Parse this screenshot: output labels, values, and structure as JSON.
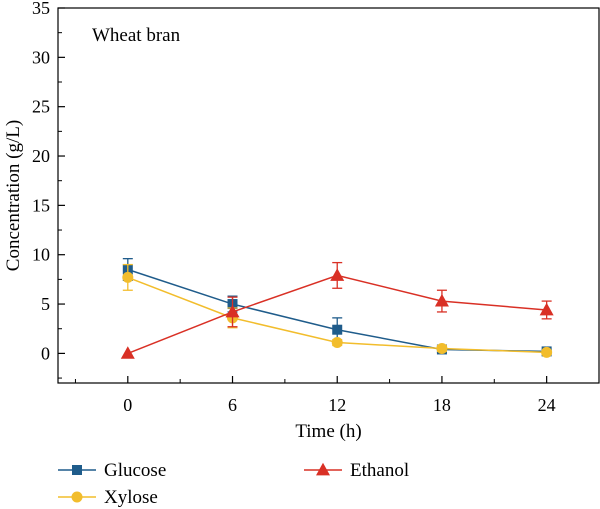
{
  "chart_data": {
    "type": "line",
    "title": "Wheat bran",
    "xlabel": "Time (h)",
    "ylabel": "Concentration (g/L)",
    "xlim": [
      -4,
      27
    ],
    "ylim": [
      -3,
      35
    ],
    "x_ticks": [
      0,
      6,
      12,
      18,
      24
    ],
    "y_ticks": [
      0,
      5,
      10,
      15,
      20,
      25,
      30,
      35
    ],
    "x_tick_labels": [
      "0",
      "6",
      "12",
      "18",
      "24"
    ],
    "y_tick_labels": [
      "0",
      "5",
      "10",
      "15",
      "20",
      "25",
      "30",
      "35"
    ],
    "x": [
      0,
      6,
      12,
      18,
      24
    ],
    "grid": false,
    "legend_position": "bottom",
    "series": [
      {
        "name": "Glucose",
        "marker": "square",
        "color": "#1f5c8b",
        "values": [
          8.5,
          5.0,
          2.4,
          0.4,
          0.2
        ],
        "errors": [
          1.1,
          0.8,
          1.2,
          0.3,
          0.2
        ]
      },
      {
        "name": "Xylose",
        "marker": "circle",
        "color": "#f2bd2c",
        "values": [
          7.7,
          3.6,
          1.1,
          0.5,
          0.1
        ],
        "errors": [
          1.3,
          1.0,
          0.3,
          0.3,
          0.2
        ]
      },
      {
        "name": "Ethanol",
        "marker": "triangle",
        "color": "#d93025",
        "values": [
          0.0,
          4.2,
          7.9,
          5.3,
          4.4
        ],
        "errors": [
          0.0,
          1.5,
          1.3,
          1.1,
          0.9
        ]
      }
    ]
  }
}
